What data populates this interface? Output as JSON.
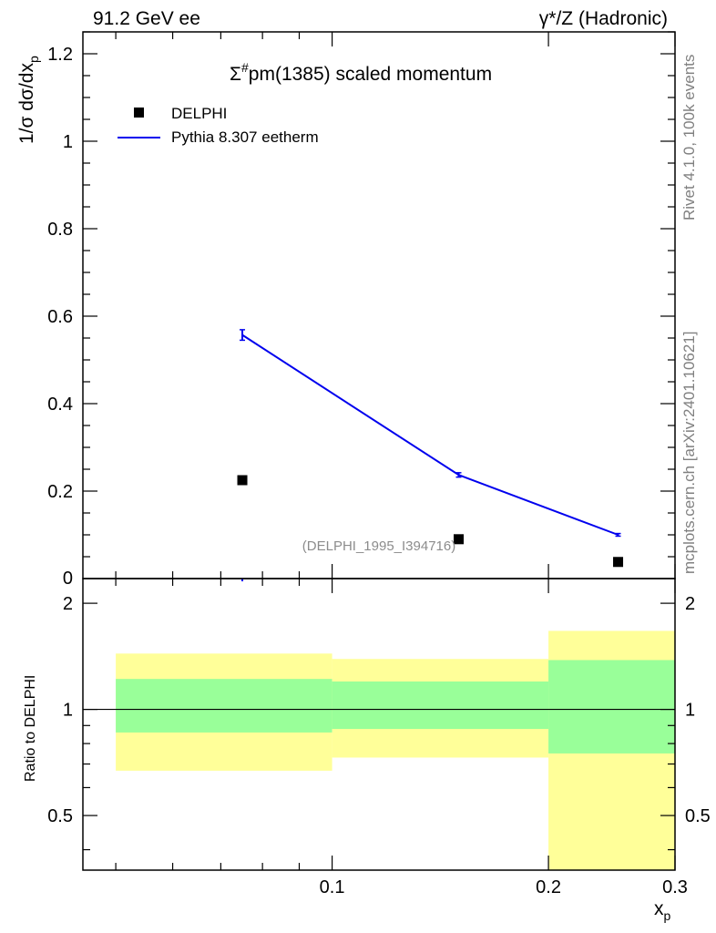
{
  "header": {
    "left": "91.2 GeV ee",
    "right": "γ*/Z (Hadronic)"
  },
  "side_labels": {
    "rivet": "Rivet 4.1.0,  100k events",
    "mcplots": "mcplots.cern.ch [arXiv:2401.10621]"
  },
  "chart_data": [
    {
      "type": "scatter",
      "title_parts": {
        "sigma": "Σ",
        "sup": "#",
        "rest": "pm(1385) scaled momentum"
      },
      "ylabel_parts": {
        "pre": "1/σ  dσ/dx",
        "sub": "p"
      },
      "xlabel_parts": {
        "base": "x",
        "sub": "p"
      },
      "xlim": [
        0.045,
        0.3
      ],
      "ylim": [
        0,
        1.25
      ],
      "y_ticks": [
        0.2,
        0.4,
        0.6,
        0.8,
        1,
        1.2
      ],
      "y_tick_labels": [
        "0.2",
        "0.4",
        "0.6",
        "0.8",
        "1",
        "1.2"
      ],
      "y_zero_label": "0",
      "reference_label": "(DELPHI_1995_I394716)",
      "legend": [
        "DELPHI",
        "Pythia 8.307 eetherm"
      ],
      "series": [
        {
          "name": "DELPHI",
          "style": "markers",
          "color": "#000000",
          "x": [
            0.075,
            0.15,
            0.25
          ],
          "y": [
            0.225,
            0.09,
            0.038
          ]
        },
        {
          "name": "Pythia 8.307 eetherm",
          "style": "line",
          "color": "#0000ee",
          "x": [
            0.075,
            0.15,
            0.25
          ],
          "y": [
            0.557,
            0.237,
            0.1
          ],
          "yerr": [
            0.012,
            0.005,
            0.003
          ]
        }
      ]
    },
    {
      "type": "bar",
      "ylabel": "Ratio to DELPHI",
      "xlim": [
        0.045,
        0.3
      ],
      "ylim": [
        0.35,
        2.35
      ],
      "x_ticks": [
        0.1,
        0.2,
        0.3
      ],
      "x_tick_labels": [
        "0.1",
        "0.2",
        "0.3"
      ],
      "y_ticks": [
        0.5,
        1,
        2
      ],
      "y_tick_labels": [
        "0.5",
        "1",
        "2"
      ],
      "reference_line": 1,
      "bins": [
        {
          "x0": 0.05,
          "x1": 0.1,
          "yellow": [
            0.67,
            1.44
          ],
          "green": [
            0.86,
            1.22
          ]
        },
        {
          "x0": 0.1,
          "x1": 0.2,
          "yellow": [
            0.73,
            1.39
          ],
          "green": [
            0.88,
            1.2
          ]
        },
        {
          "x0": 0.2,
          "x1": 0.3,
          "yellow": [
            0.35,
            1.67
          ],
          "green": [
            0.75,
            1.38
          ]
        }
      ],
      "colors": {
        "yellow": "#ffff99",
        "green": "#99ff99"
      }
    }
  ]
}
